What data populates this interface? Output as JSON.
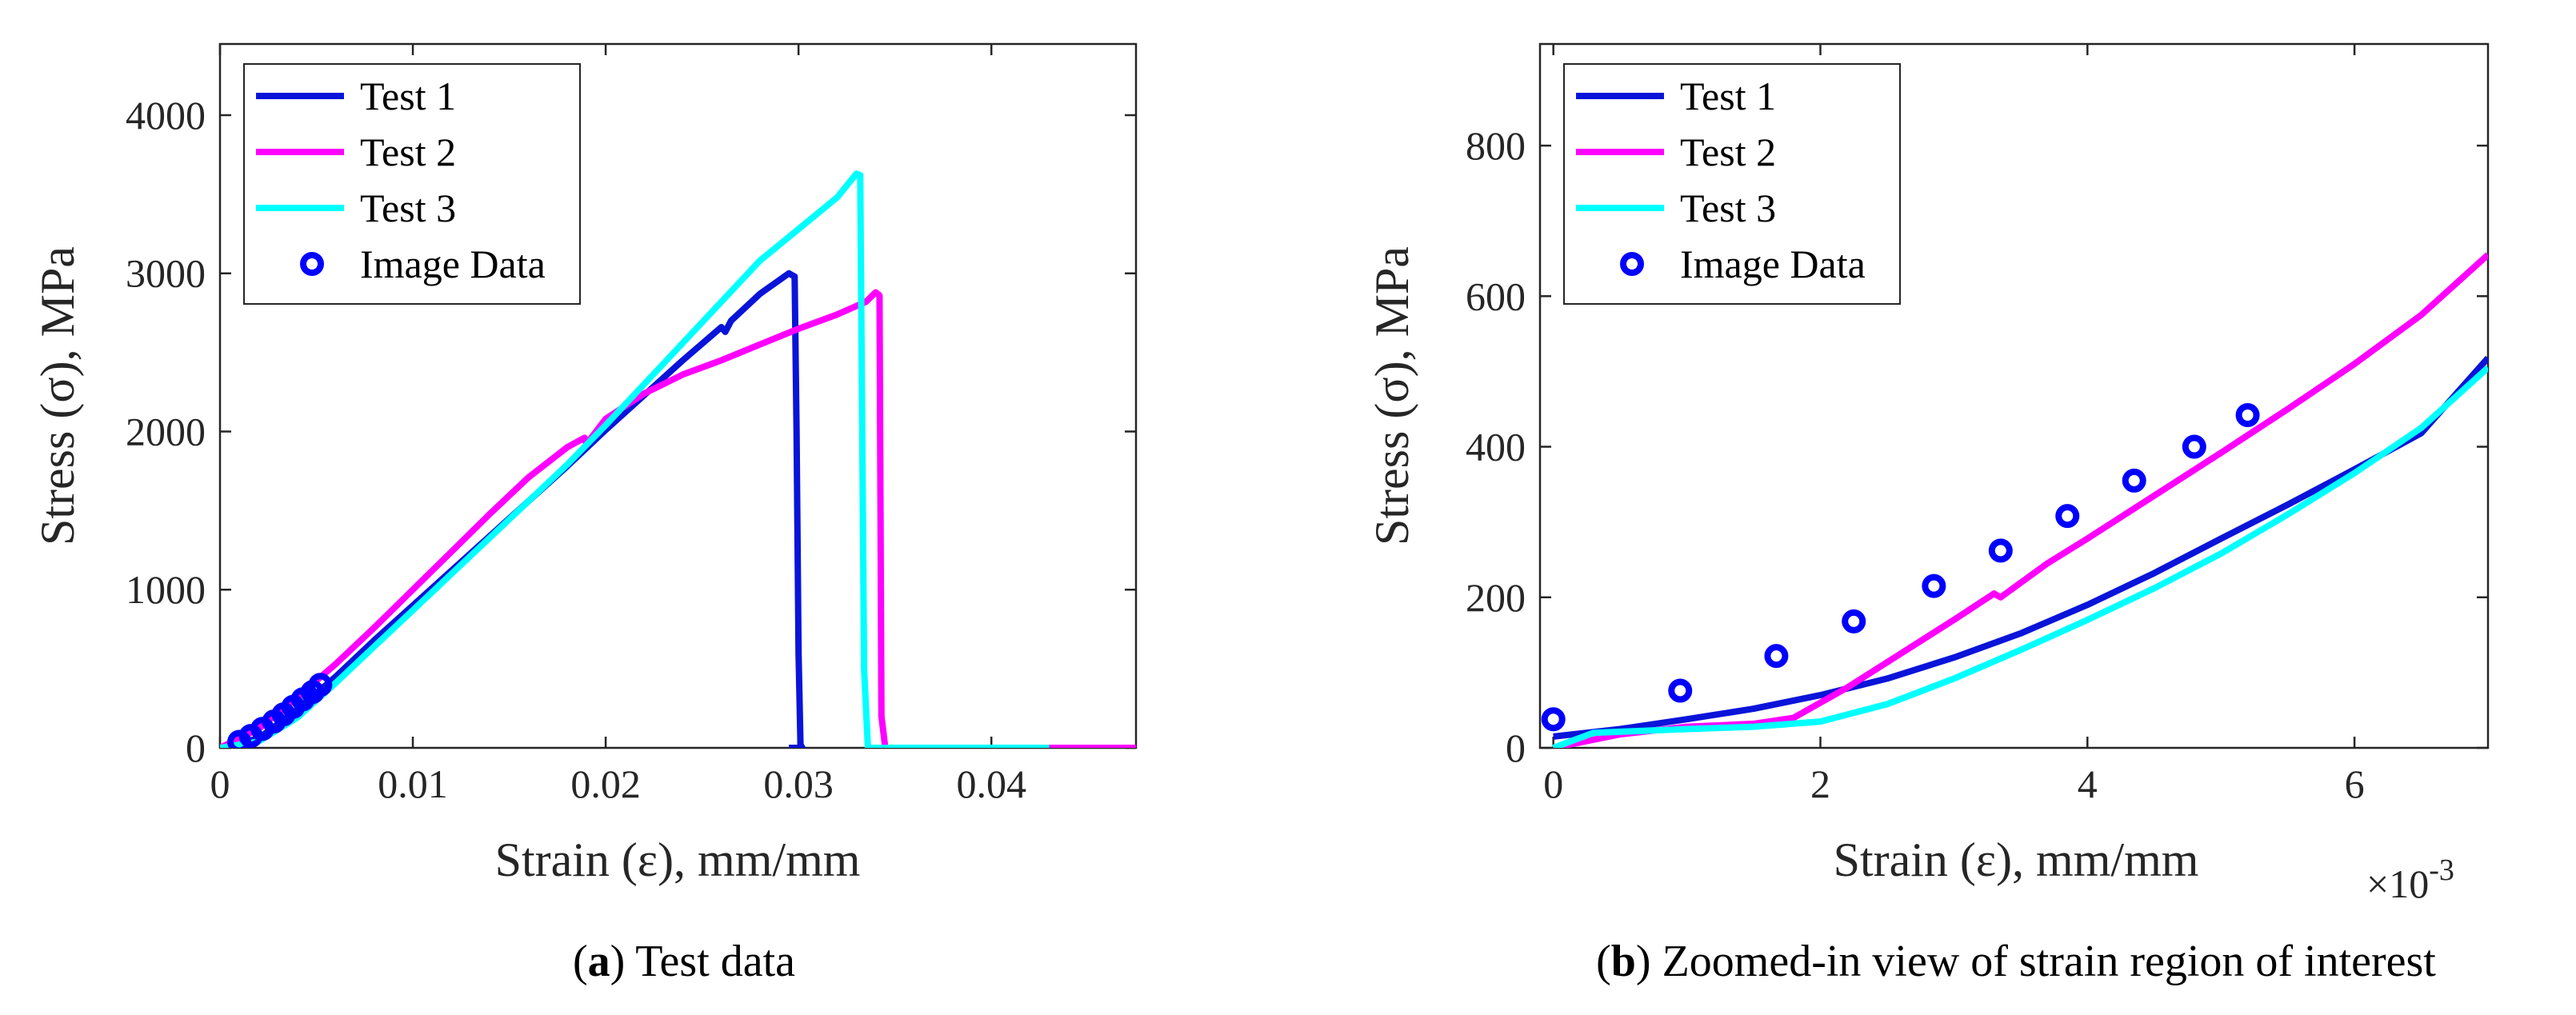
{
  "colors": {
    "test1": "#0a14d9",
    "test2": "#ff00ff",
    "test3": "#00ffff",
    "image": "#0000ff"
  },
  "chart_data": [
    {
      "type": "line",
      "caption_letter": "a",
      "caption_text": "Test data",
      "xlabel": "Strain (ε), mm/mm",
      "ylabel": "Stress (σ), MPa",
      "xlim": [
        0,
        0.0475
      ],
      "ylim": [
        0,
        4450
      ],
      "xticks": [
        0,
        0.01,
        0.02,
        0.03,
        0.04
      ],
      "xtick_labels": [
        "0",
        "0.01",
        "0.02",
        "0.03",
        "0.04"
      ],
      "yticks": [
        0,
        1000,
        2000,
        3000,
        4000
      ],
      "ytick_labels": [
        "0",
        "1000",
        "2000",
        "3000",
        "4000"
      ],
      "exponent": "",
      "legend_position": "top-left",
      "series": [
        {
          "name": "Test 1",
          "color_key": "test1",
          "x": [
            0,
            0.002,
            0.004,
            0.006,
            0.008,
            0.01,
            0.012,
            0.014,
            0.016,
            0.018,
            0.02,
            0.022,
            0.024,
            0.026,
            0.0262,
            0.0265,
            0.028,
            0.0295,
            0.0298,
            0.0299,
            0.03,
            0.0301,
            0.0302,
            0.0295
          ],
          "y": [
            0,
            60,
            240,
            450,
            680,
            900,
            1120,
            1340,
            1560,
            1780,
            2010,
            2230,
            2450,
            2660,
            2630,
            2700,
            2870,
            3000,
            2980,
            2000,
            600,
            20,
            0,
            0
          ]
        },
        {
          "name": "Test 2",
          "color_key": "test2",
          "x": [
            0,
            0.002,
            0.004,
            0.006,
            0.008,
            0.01,
            0.012,
            0.014,
            0.016,
            0.018,
            0.0189,
            0.019,
            0.02,
            0.022,
            0.024,
            0.026,
            0.028,
            0.03,
            0.032,
            0.0335,
            0.034,
            0.0342,
            0.0343,
            0.0345,
            0.04,
            0.0475
          ],
          "y": [
            0,
            120,
            320,
            530,
            760,
            1000,
            1240,
            1480,
            1710,
            1900,
            1960,
            1920,
            2080,
            2240,
            2360,
            2450,
            2550,
            2650,
            2740,
            2820,
            2880,
            2860,
            200,
            0,
            0,
            0
          ]
        },
        {
          "name": "Test 3",
          "color_key": "test3",
          "x": [
            0,
            0.002,
            0.004,
            0.006,
            0.008,
            0.01,
            0.012,
            0.014,
            0.016,
            0.018,
            0.02,
            0.022,
            0.024,
            0.026,
            0.028,
            0.03,
            0.032,
            0.033,
            0.0332,
            0.0334,
            0.0336,
            0.034,
            0.043
          ],
          "y": [
            0,
            40,
            190,
            410,
            640,
            870,
            1100,
            1330,
            1560,
            1790,
            2040,
            2300,
            2560,
            2820,
            3080,
            3280,
            3480,
            3630,
            3620,
            500,
            0,
            0,
            0
          ]
        },
        {
          "name": "Image Data",
          "color_key": "image",
          "markers": true,
          "x": [
            0.001,
            0.0016,
            0.0022,
            0.0028,
            0.0033,
            0.0038,
            0.0043,
            0.0048,
            0.0052
          ],
          "y": [
            38,
            75,
            120,
            167,
            212,
            260,
            307,
            353,
            398
          ]
        }
      ]
    },
    {
      "type": "line",
      "caption_letter": "b",
      "caption_text": "Zoomed-in view of strain region of interest",
      "xlabel": "Strain (ε), mm/mm",
      "ylabel": "Stress (σ), MPa",
      "xlim": [
        -0.1,
        7
      ],
      "ylim": [
        0,
        935
      ],
      "xticks": [
        0,
        2,
        4,
        6
      ],
      "xtick_labels": [
        "0",
        "2",
        "4",
        "6"
      ],
      "yticks": [
        0,
        200,
        400,
        600,
        800
      ],
      "ytick_labels": [
        "0",
        "200",
        "400",
        "600",
        "800"
      ],
      "exponent": "×10",
      "exponent_power": "-3",
      "legend_position": "top-left",
      "series": [
        {
          "name": "Test 1",
          "color_key": "test1",
          "x": [
            0,
            0.5,
            1,
            1.5,
            2,
            2.5,
            3,
            3.5,
            4,
            4.5,
            5,
            5.5,
            6,
            6.5,
            7
          ],
          "y": [
            15,
            25,
            38,
            52,
            70,
            92,
            120,
            152,
            190,
            232,
            278,
            323,
            370,
            418,
            518
          ]
        },
        {
          "name": "Test 2",
          "color_key": "test2",
          "x": [
            0,
            0.5,
            1,
            1.5,
            1.8,
            2.2,
            2.6,
            3,
            3.3,
            3.35,
            3.7,
            4,
            4.5,
            5,
            5.5,
            6,
            6.5,
            7
          ],
          "y": [
            0,
            18,
            28,
            32,
            40,
            80,
            125,
            170,
            205,
            200,
            245,
            278,
            335,
            392,
            450,
            510,
            575,
            655
          ]
        },
        {
          "name": "Test 3",
          "color_key": "test3",
          "x": [
            0,
            0.3,
            1,
            1.5,
            2,
            2.5,
            3,
            3.5,
            4,
            4.5,
            5,
            5.5,
            6,
            6.5,
            7
          ],
          "y": [
            0,
            20,
            25,
            28,
            35,
            58,
            92,
            130,
            170,
            212,
            258,
            310,
            365,
            425,
            505
          ]
        },
        {
          "name": "Image Data",
          "color_key": "image",
          "markers": true,
          "x": [
            0,
            0.95,
            1.67,
            2.25,
            2.85,
            3.35,
            3.85,
            4.35,
            4.8,
            5.2
          ],
          "y": [
            38,
            76,
            122,
            168,
            215,
            262,
            308,
            355,
            400,
            442
          ]
        }
      ]
    }
  ]
}
